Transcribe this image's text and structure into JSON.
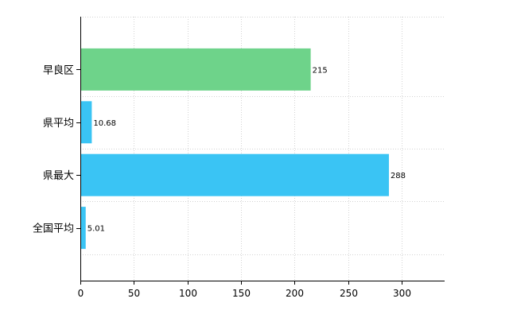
{
  "chart_data": {
    "type": "bar",
    "orientation": "horizontal",
    "categories": [
      "早良区",
      "県平均",
      "県最大",
      "全国平均"
    ],
    "values": [
      215,
      10.68,
      288,
      5.01
    ],
    "value_labels": [
      "215",
      "10.68",
      "288",
      "5.01"
    ],
    "colors": [
      "#6ed38a",
      "#3ac4f4",
      "#3ac4f4",
      "#3ac4f4"
    ],
    "xlim": [
      0,
      340
    ],
    "xticks": [
      0,
      50,
      100,
      150,
      200,
      250,
      300
    ],
    "xtick_labels": [
      "0",
      "50",
      "100",
      "150",
      "200",
      "250",
      "300"
    ],
    "grid": true,
    "title": "",
    "xlabel": "",
    "ylabel": ""
  }
}
